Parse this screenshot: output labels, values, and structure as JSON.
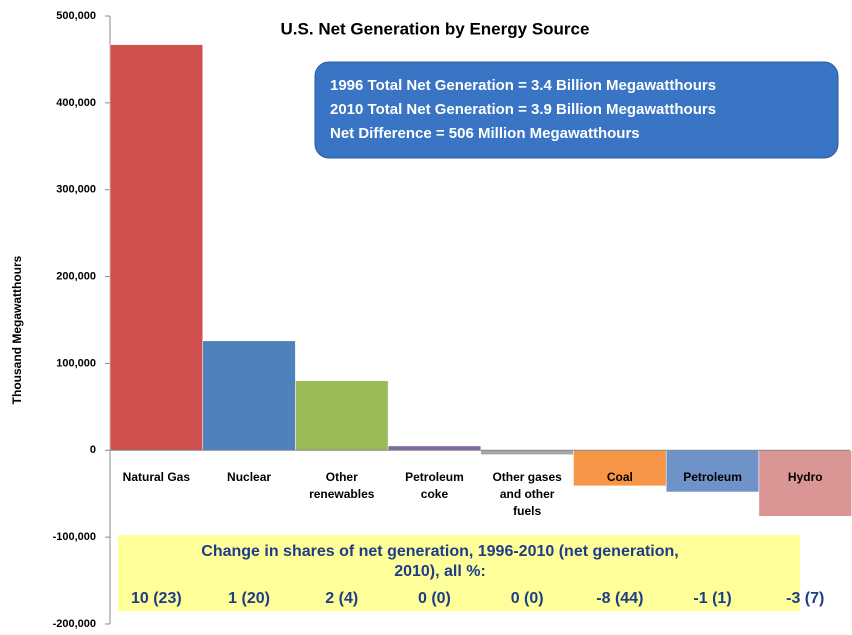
{
  "chart_data": {
    "type": "bar",
    "title": "U.S. Net Generation by Energy Source",
    "y_label": "Thousand Megawatthours",
    "notes": [
      "1996 Total Net Generation = 3.4 Billion Megawatthours",
      "2010 Total Net Generation = 3.9 Billion Megawatthours",
      "Net Difference = 506 Million Megawatthours"
    ],
    "categories": [
      "Natural Gas",
      "Nuclear",
      "Other\nrenewables",
      "Petroleum\ncoke",
      "Other gases\nand other\nfuels",
      "Coal",
      "Petroleum",
      "Hydro"
    ],
    "values": [
      467000,
      126000,
      80000,
      5000,
      -5000,
      -41000,
      -48000,
      -76000
    ],
    "colors": [
      "#d0504d",
      "#4f81bd",
      "#9bbb59",
      "#8064a2",
      "#a5a5a5",
      "#f79646",
      "#6f93c8",
      "#d99694"
    ],
    "share_title": "Change in shares of net generation, 1996-2010 (net generation,\n2010), all %:",
    "share_labels": [
      "10 (23)",
      "1 (20)",
      "2 (4)",
      "0 (0)",
      "0 (0)",
      "-8 (44)",
      "-1 (1)",
      "-3 (7)"
    ],
    "ylim": [
      -200000,
      500000
    ],
    "yticks": [
      {
        "value": -200000,
        "label": "-200,000"
      },
      {
        "value": -100000,
        "label": "-100,000"
      },
      0,
      {
        "value": 100000,
        "label": "100,000"
      },
      {
        "value": 200000,
        "label": "200,000"
      },
      {
        "value": 300000,
        "label": "300,000"
      },
      {
        "value": 400000,
        "label": "400,000"
      },
      {
        "value": 500000,
        "label": "500,000"
      }
    ],
    "grid": false
  }
}
